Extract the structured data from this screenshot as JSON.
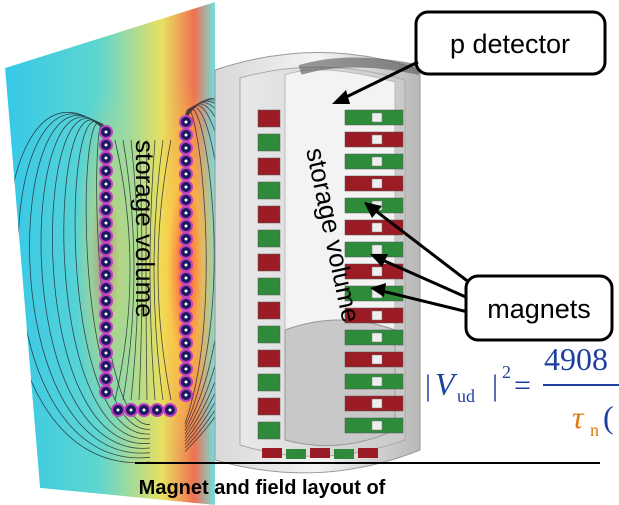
{
  "callouts": {
    "detector": "p detector",
    "magnets": "magnets"
  },
  "field_map": {
    "label": "storage volume"
  },
  "apparatus": {
    "label": "storage volume"
  },
  "formula": {
    "open_bar": "|",
    "symbol": "V",
    "subscript": "ud",
    "close_bar": "|",
    "power": "2",
    "equals": "=",
    "numerator": "4908",
    "denominator_symbol": "τ",
    "denominator_subscript": "n",
    "denominator_paren": "("
  },
  "caption": "Magnet and field layout of"
}
